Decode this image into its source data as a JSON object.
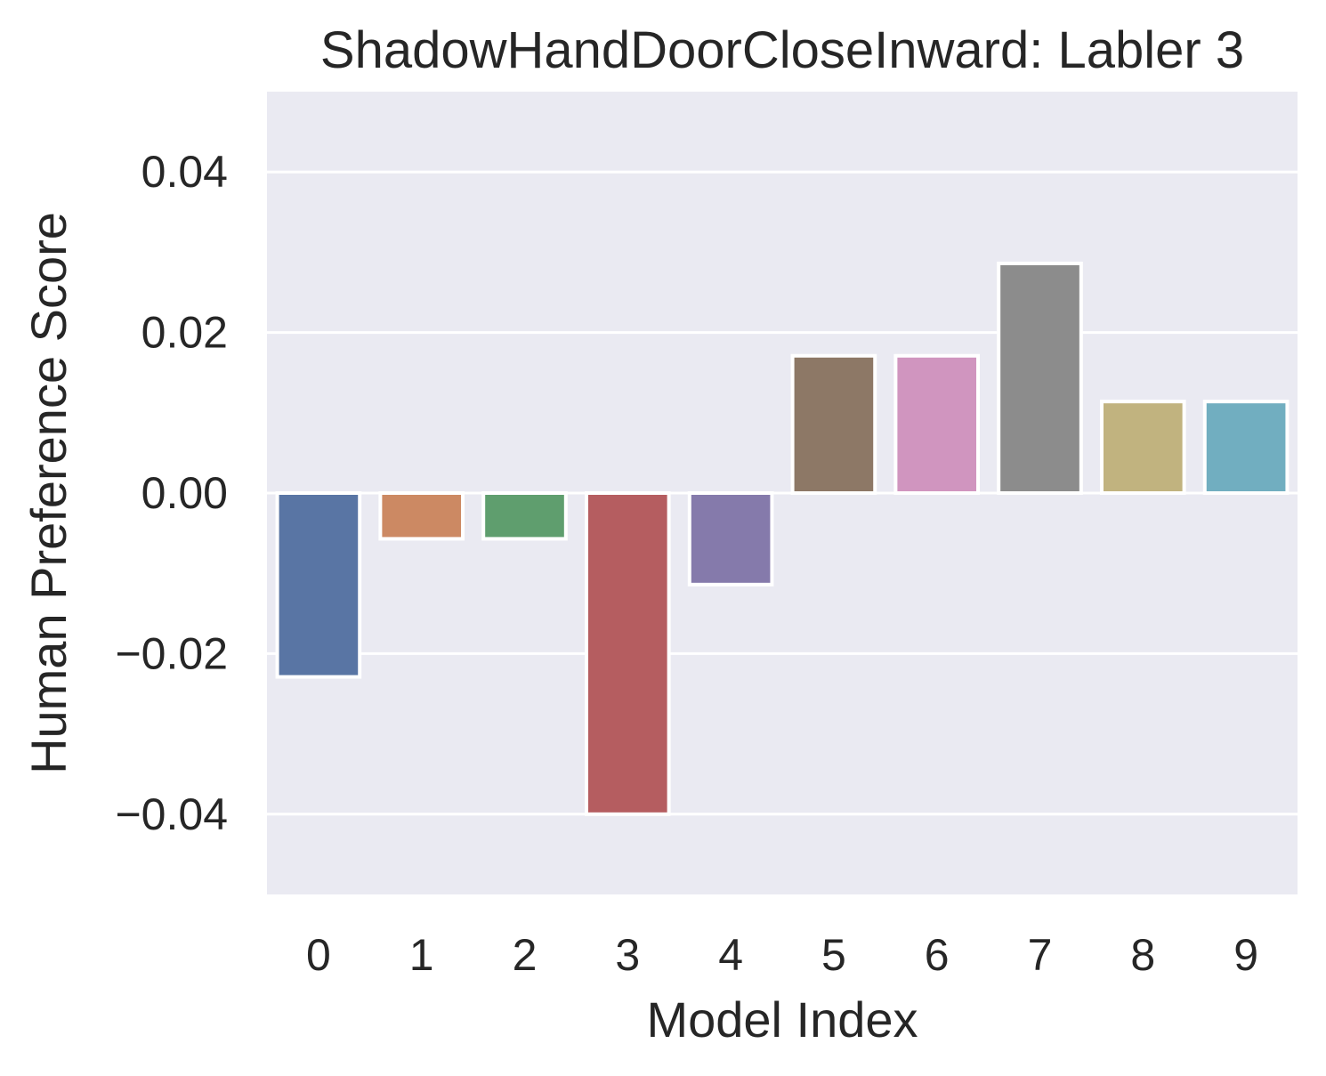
{
  "chart_data": {
    "type": "bar",
    "title": "ShadowHandDoorCloseInward: Labler 3",
    "xlabel": "Model Index",
    "ylabel": "Human Preference Score",
    "categories": [
      "0",
      "1",
      "2",
      "3",
      "4",
      "5",
      "6",
      "7",
      "8",
      "9"
    ],
    "values": [
      -0.0229,
      -0.0057,
      -0.0057,
      -0.04,
      -0.0114,
      0.0171,
      0.0171,
      0.0286,
      0.0114,
      0.0114
    ],
    "colors": [
      "#5975a4",
      "#cc8963",
      "#5f9e6e",
      "#b55d60",
      "#857aab",
      "#8d7866",
      "#d095bf",
      "#8c8c8c",
      "#c1b37f",
      "#71aec0"
    ],
    "ylim": [
      -0.05,
      0.05
    ],
    "yticks": [
      -0.04,
      -0.02,
      0.0,
      0.02,
      0.04
    ],
    "ytick_labels": [
      "−0.04",
      "−0.02",
      "0.00",
      "0.02",
      "0.04"
    ],
    "grid": true,
    "plot_background": "#eaeaf2",
    "grid_color": "#ffffff",
    "text_color": "#262626"
  }
}
